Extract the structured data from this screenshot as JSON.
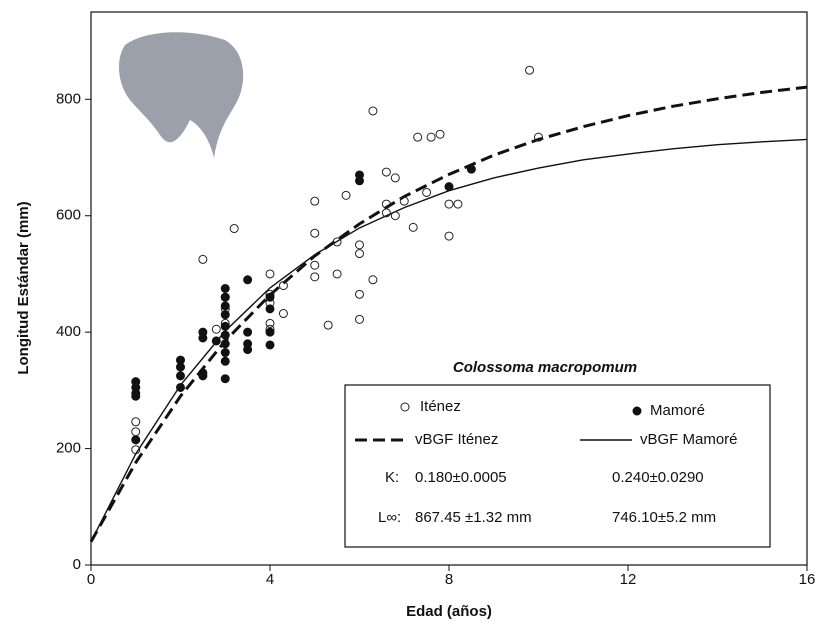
{
  "chart_data": {
    "type": "scatter",
    "x_label": "Edad (años)",
    "y_label": "Longitud Estándar (mm)",
    "xlim": [
      0,
      16
    ],
    "ylim": [
      0,
      950
    ],
    "xticks": [
      0,
      4,
      8,
      12,
      16
    ],
    "yticks": [
      0,
      200,
      400,
      600,
      800
    ],
    "legend_title": "Colossoma macropomum",
    "k_label": "K:",
    "linf_label": "L∞:",
    "series": [
      {
        "name": "Iténez",
        "color": "#222222",
        "marker": "open",
        "x": [
          1,
          1,
          1,
          2.5,
          3.2,
          2.8,
          3,
          3,
          3,
          4,
          4,
          4,
          4,
          4,
          4.3,
          4.3,
          5,
          5,
          5,
          5,
          5.3,
          5.5,
          5.5,
          5.7,
          6,
          6,
          6,
          6,
          6.3,
          6.3,
          6.6,
          6.6,
          6.6,
          6.8,
          6.8,
          7,
          7.2,
          7.3,
          7.6,
          7.5,
          7.8,
          8,
          8,
          8.2,
          9.8,
          10
        ],
        "values": [
          246,
          229,
          198,
          525,
          578,
          405,
          440,
          415,
          460,
          500,
          465,
          450,
          415,
          405,
          480,
          432,
          625,
          570,
          515,
          495,
          412,
          500,
          555,
          635,
          550,
          535,
          465,
          422,
          780,
          490,
          675,
          620,
          605,
          665,
          600,
          625,
          580,
          735,
          735,
          640,
          740,
          620,
          565,
          620,
          850,
          735
        ]
      },
      {
        "name": "Mamoré",
        "color": "#111111",
        "marker": "filled",
        "x": [
          1,
          1,
          1,
          1,
          1,
          2,
          2,
          2,
          2,
          2.5,
          2.5,
          2.5,
          2.5,
          2.8,
          3,
          3,
          3,
          3,
          3,
          3,
          3,
          3,
          3,
          3,
          3.5,
          3.5,
          3.5,
          3.5,
          4,
          4,
          4,
          4,
          6,
          6,
          8,
          8.5
        ],
        "values": [
          315,
          305,
          295,
          290,
          215,
          352,
          340,
          325,
          305,
          400,
          390,
          330,
          325,
          385,
          475,
          460,
          445,
          430,
          410,
          395,
          380,
          365,
          350,
          320,
          490,
          400,
          380,
          370,
          460,
          440,
          400,
          378,
          670,
          660,
          650,
          680
        ]
      },
      {
        "name": "vBGF Iténez",
        "color": "#111111",
        "style": "dashed",
        "k": "0.180±0.0005",
        "linf": "867.45 ±1.32 mm",
        "x": [
          0,
          1,
          2,
          3,
          4,
          5,
          6,
          7,
          8,
          9,
          10,
          11,
          12,
          13,
          14,
          15,
          16
        ],
        "values": [
          40,
          176,
          290,
          385,
          464,
          531,
          586,
          633,
          671,
          704,
          731,
          753,
          772,
          788,
          801,
          812,
          821
        ]
      },
      {
        "name": "vBGF Mamoré",
        "color": "#111111",
        "style": "solid",
        "k": "0.240±0.0290",
        "linf": "746.10±5.2 mm",
        "x": [
          0,
          1,
          2,
          3,
          4,
          5,
          6,
          7,
          8,
          9,
          10,
          11,
          12,
          13,
          14,
          15,
          16
        ],
        "values": [
          40,
          191,
          309,
          402,
          476,
          533,
          579,
          614,
          643,
          665,
          682,
          696,
          706,
          715,
          722,
          727,
          731
        ]
      }
    ]
  }
}
